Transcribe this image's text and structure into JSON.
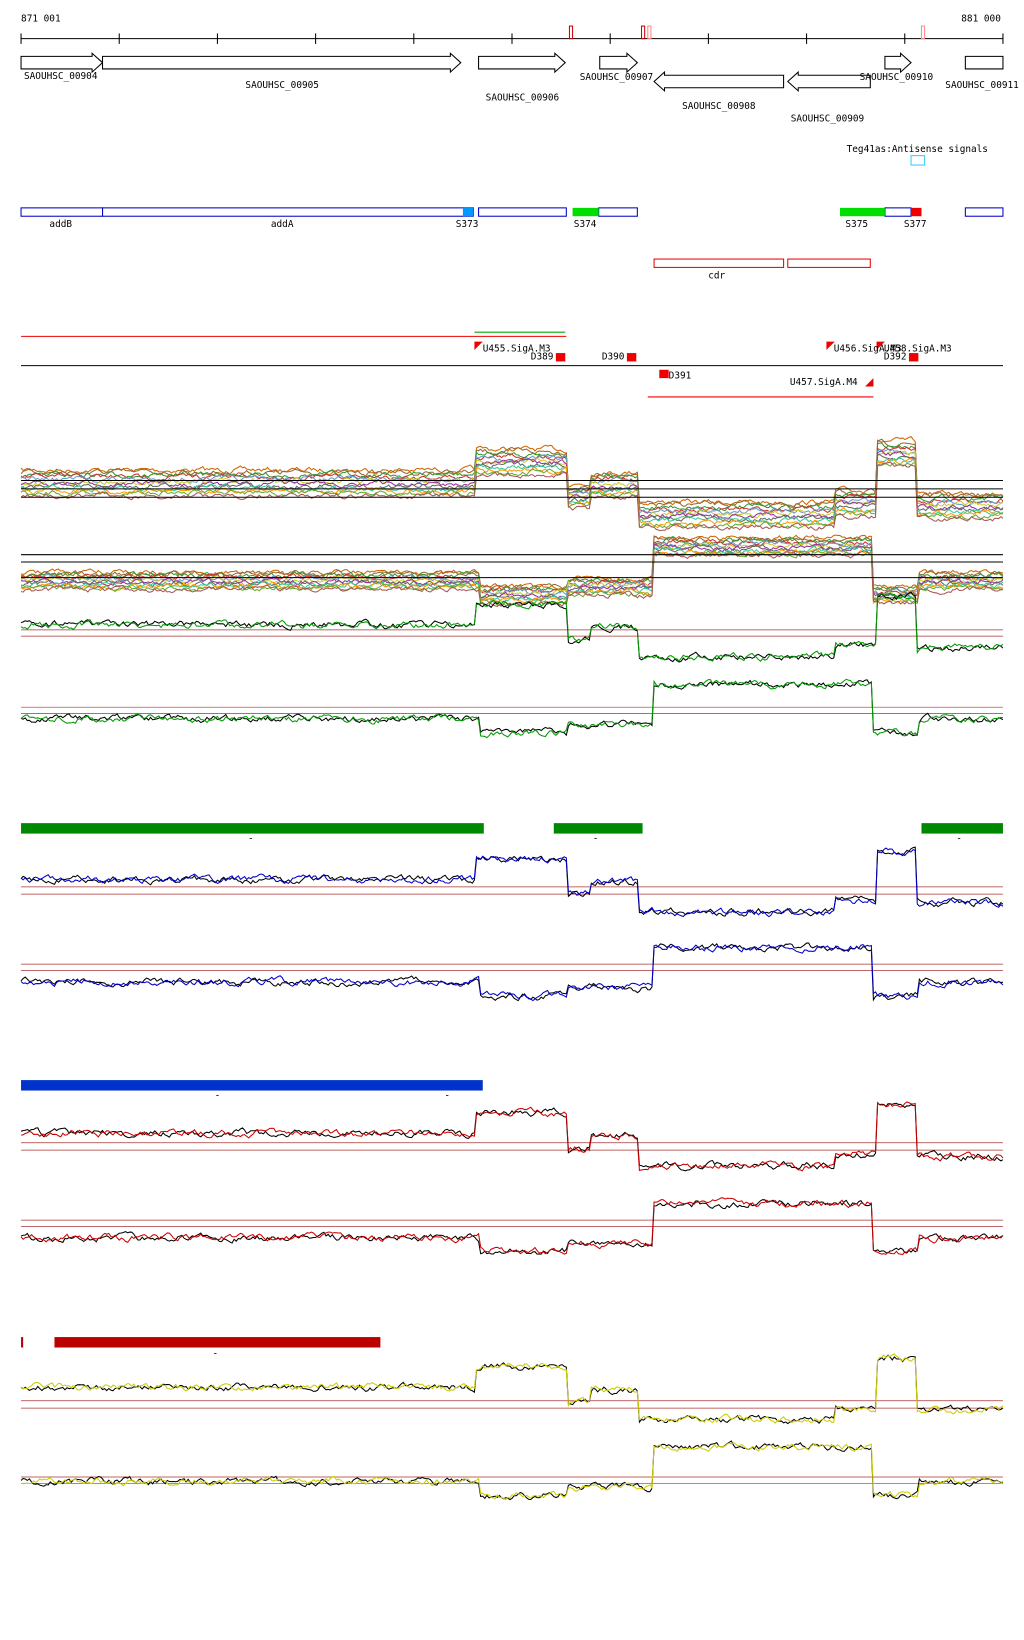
{
  "header": {
    "start": "871 001",
    "end": "881 000"
  },
  "genes": [
    {
      "label": "SAOUHSC_00904"
    },
    {
      "label": "SAOUHSC_00905"
    },
    {
      "label": "SAOUHSC_00906"
    },
    {
      "label": "SAOUHSC_00907"
    },
    {
      "label": "SAOUHSC_00908"
    },
    {
      "label": "SAOUHSC_00909"
    },
    {
      "label": "SAOUHSC_00910"
    },
    {
      "label": "SAOUHSC_00911"
    }
  ],
  "antisense_title": "Teg41as:Antisense signals",
  "features": [
    {
      "label": "addB"
    },
    {
      "label": "addA"
    },
    {
      "label": "S373"
    },
    {
      "label": "S374"
    },
    {
      "label": "S375"
    },
    {
      "label": "S377"
    },
    {
      "label": "cdr"
    }
  ],
  "promoters": [
    {
      "label": "U455.SigA.M3"
    },
    {
      "label": "D389"
    },
    {
      "label": "D390"
    },
    {
      "label": "D391"
    },
    {
      "label": "U456.SigA.M3"
    },
    {
      "label": "U458.SigA.M3"
    },
    {
      "label": "D392"
    },
    {
      "label": "U457.SigA.M4"
    }
  ],
  "markers": [
    "-",
    "-",
    "-",
    "-",
    "-",
    "-"
  ]
}
